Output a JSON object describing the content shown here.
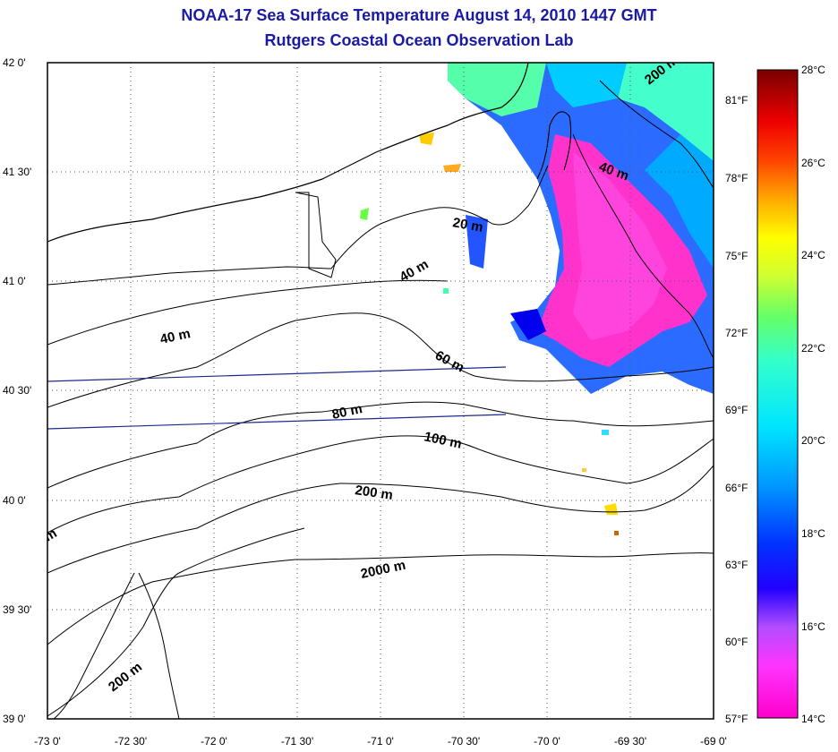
{
  "title": {
    "line1": "NOAA-17 Sea Surface Temperature August 14, 2010 1447 GMT",
    "line2": "Rutgers Coastal Ocean Observation Lab"
  },
  "map": {
    "lon_labels": [
      "-73 0'",
      "-72 30'",
      "-72 0'",
      "-71 30'",
      "-71 0'",
      "-70 30'",
      "-70 0'",
      "-69 30'",
      "-69 0'"
    ],
    "lat_labels": [
      "42 0'",
      "41 30'",
      "41 0'",
      "40 30'",
      "40 0'",
      "39 30'",
      "39 0'"
    ],
    "contour_labels": [
      "200 m",
      "40 m",
      "20 m",
      "40 m",
      "40 m",
      "60 m",
      "80 m",
      "100 m",
      "200 m",
      "2000 m",
      "200 m",
      "m"
    ],
    "colors": {
      "title": "#1a1aa6",
      "land_line": "#000000",
      "ship_track": "#1c2a8c"
    }
  },
  "colorbar": {
    "celsius_labels": [
      "28°C",
      "26°C",
      "24°C",
      "22°C",
      "20°C",
      "18°C",
      "16°C",
      "14°C"
    ],
    "fahrenheit_labels": [
      "81°F",
      "78°F",
      "75°F",
      "72°F",
      "69°F",
      "66°F",
      "63°F",
      "60°F",
      "57°F"
    ],
    "range_c": [
      14,
      28
    ],
    "colors": [
      "#ff00cc",
      "#cc33ff",
      "#6600cc",
      "#0000ff",
      "#0066ff",
      "#00ccff",
      "#00ffcc",
      "#66ff66",
      "#ccff33",
      "#ffff00",
      "#ffcc00",
      "#ff6600",
      "#ff0000",
      "#cc0000",
      "#880000"
    ]
  }
}
